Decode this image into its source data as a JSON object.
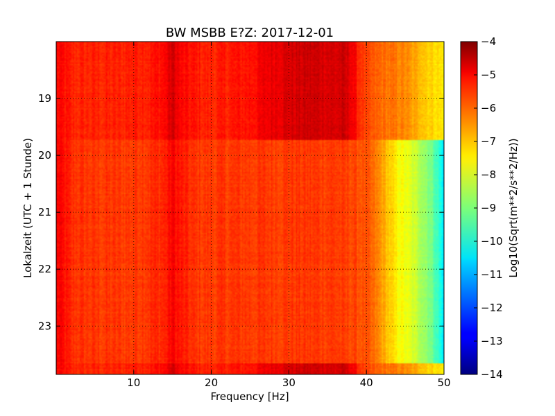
{
  "chart_data": {
    "type": "heatmap",
    "title": "BW MSBB E?Z: 2017-12-01",
    "xlabel": "Frequency [Hz]",
    "ylabel": "Lokalzeit (UTC + 1 Stunde)",
    "xlim": [
      0,
      50
    ],
    "ylim": [
      18.0,
      23.85
    ],
    "xticks": [
      10,
      20,
      30,
      40,
      50
    ],
    "yticks": [
      19,
      20,
      21,
      22,
      23
    ],
    "grid": true,
    "colormap": "jet",
    "colorbar": {
      "label": "Log10(Sqrt(m**2/s**2/Hz))",
      "min": -14,
      "max": -4,
      "ticks": [
        -4,
        -5,
        -6,
        -7,
        -8,
        -9,
        -10,
        -11,
        -12,
        -13,
        -14
      ]
    },
    "frequency_profile": {
      "x": [
        0,
        1,
        2,
        5,
        8,
        10,
        12,
        14,
        15,
        16,
        18,
        20,
        25,
        28,
        30,
        32,
        34,
        36,
        37,
        38,
        39,
        40,
        41,
        42,
        43,
        44,
        45,
        46,
        47,
        48,
        49,
        50
      ],
      "quiet_level": [
        -5.2,
        -5.4,
        -5.7,
        -5.8,
        -5.8,
        -5.8,
        -5.7,
        -5.6,
        -5.2,
        -5.5,
        -5.8,
        -5.8,
        -5.8,
        -5.8,
        -5.8,
        -5.8,
        -5.8,
        -5.8,
        -5.9,
        -5.9,
        -6.0,
        -6.1,
        -6.4,
        -6.8,
        -7.3,
        -7.7,
        -7.9,
        -8.2,
        -8.5,
        -8.9,
        -9.5,
        -10.5
      ],
      "noisy_level": [
        -5.3,
        -5.4,
        -5.6,
        -5.6,
        -5.6,
        -5.5,
        -5.5,
        -5.3,
        -4.8,
        -5.3,
        -5.5,
        -5.6,
        -5.4,
        -5.0,
        -4.9,
        -4.8,
        -4.8,
        -4.9,
        -4.8,
        -5.0,
        -5.6,
        -6.0,
        -6.2,
        -6.3,
        -6.4,
        -6.5,
        -6.6,
        -6.9,
        -7.0,
        -7.3,
        -7.4,
        -7.6
      ]
    },
    "time_segments": [
      {
        "start": 18.0,
        "end": 19.72,
        "profile": "noisy"
      },
      {
        "start": 19.72,
        "end": 23.65,
        "profile": "quiet"
      },
      {
        "start": 23.65,
        "end": 23.85,
        "profile": "noisy"
      }
    ]
  }
}
